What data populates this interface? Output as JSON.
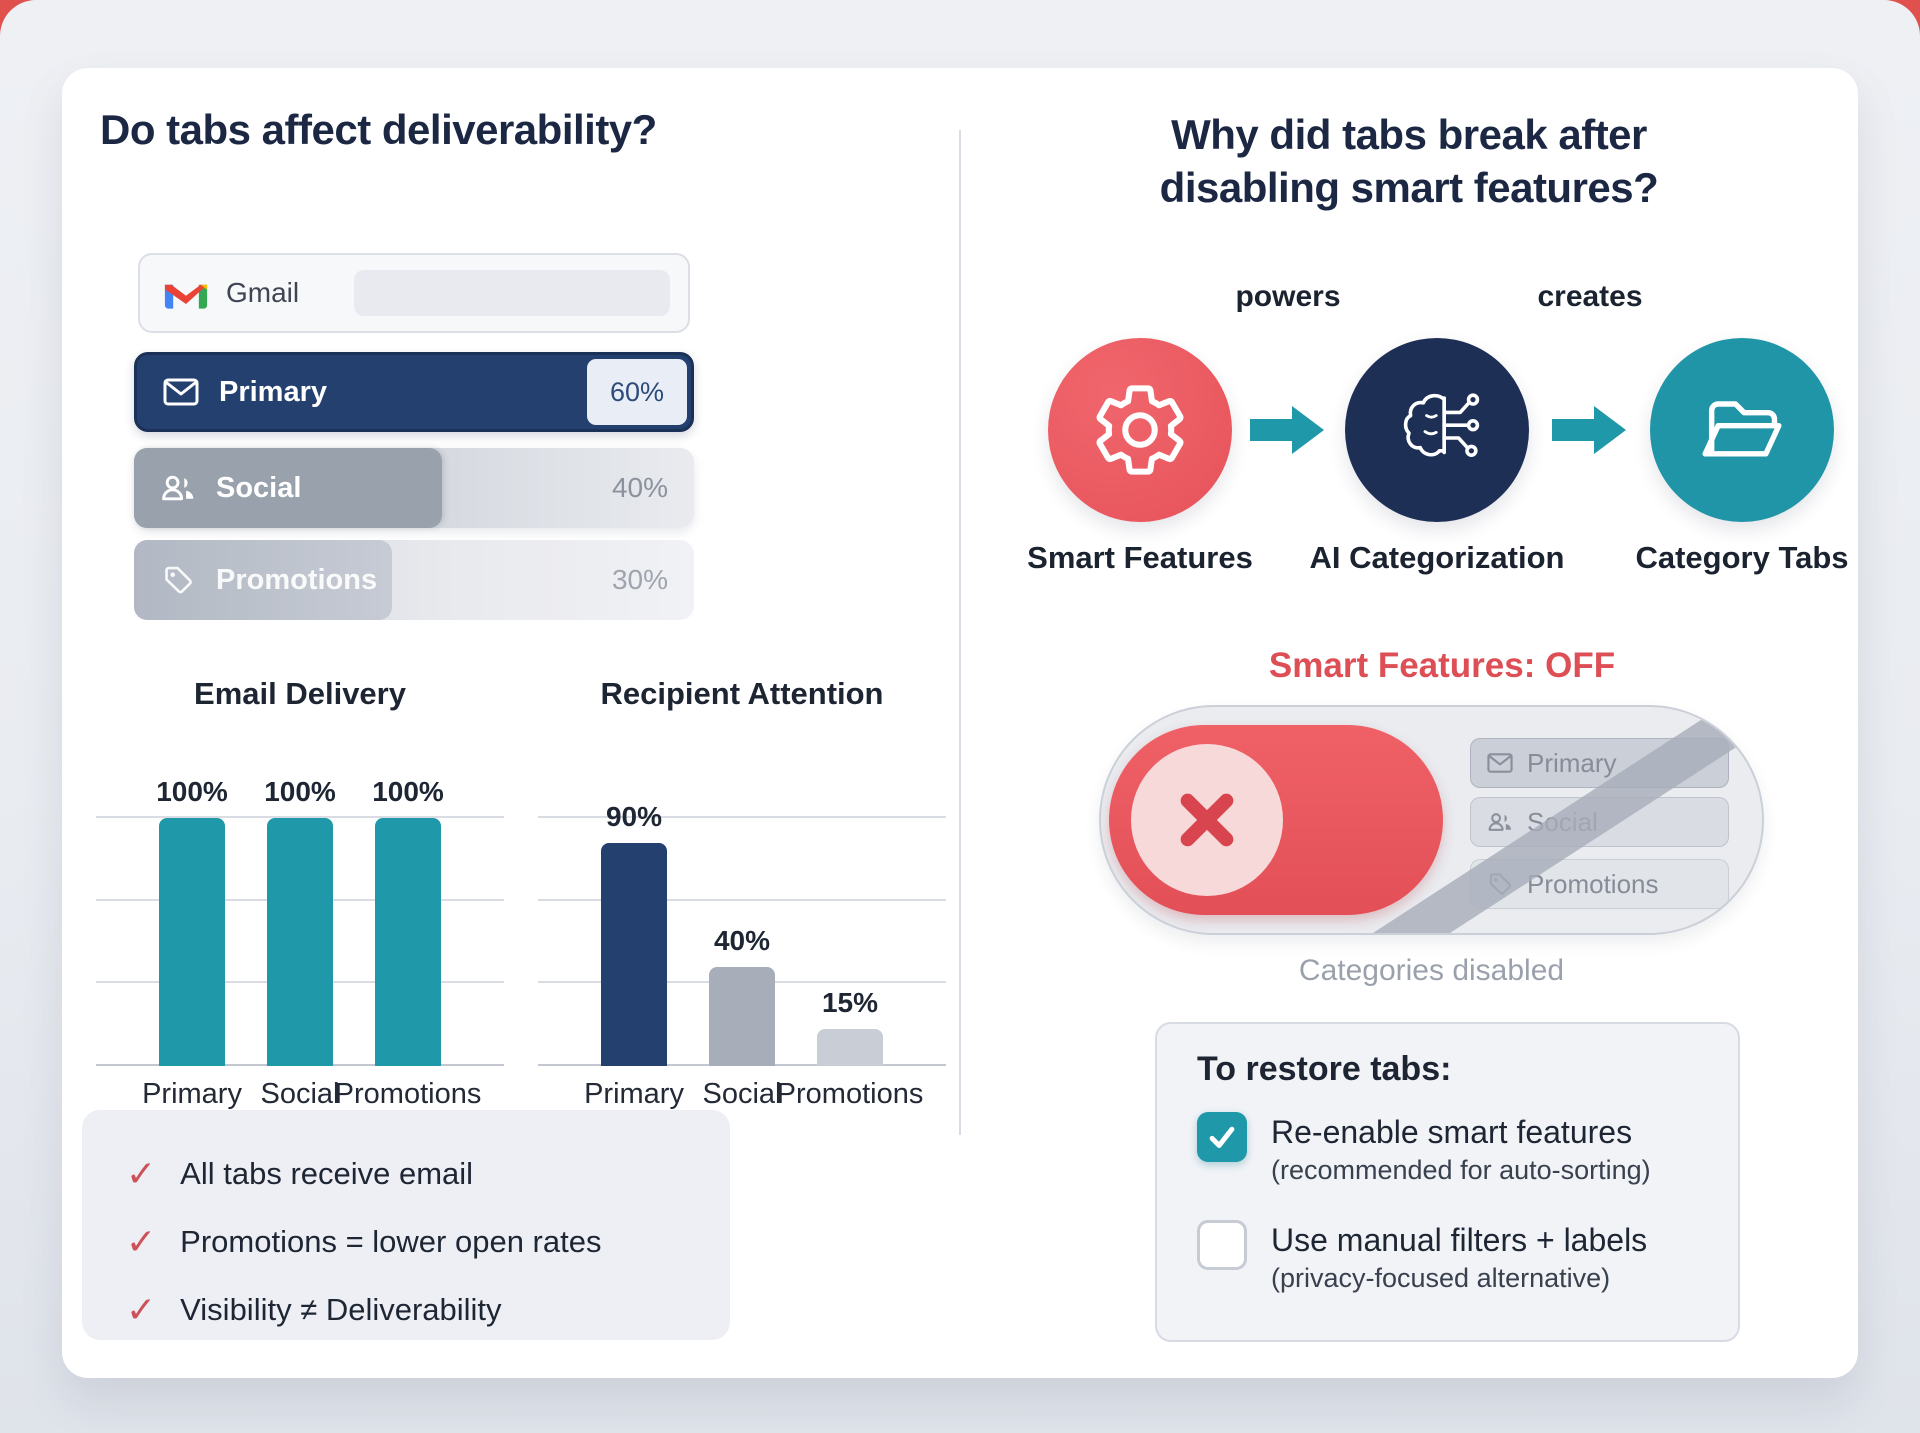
{
  "left": {
    "title": "Do tabs affect deliverability?",
    "gmail": {
      "label": "Gmail"
    },
    "tabs": [
      {
        "label": "Primary",
        "value": "60%"
      },
      {
        "label": "Social",
        "value": "40%"
      },
      {
        "label": "Promotions",
        "value": "30%"
      }
    ],
    "checklist": [
      "All tabs receive email",
      "Promotions = lower open rates",
      "Visibility ≠ Deliverability"
    ]
  },
  "chart_data": [
    {
      "type": "bar",
      "title": "Email Delivery",
      "categories": [
        "Primary",
        "Social",
        "Promotions"
      ],
      "values": [
        100,
        100,
        100
      ],
      "value_labels": [
        "100%",
        "100%",
        "100%"
      ],
      "xlabel": "",
      "ylabel": "",
      "ylim": [
        0,
        100
      ],
      "grid": true,
      "legend": false,
      "bar_colors": [
        "#1f98aa",
        "#1f98aa",
        "#1f98aa"
      ]
    },
    {
      "type": "bar",
      "title": "Recipient Attention",
      "categories": [
        "Primary",
        "Social",
        "Promotions"
      ],
      "values": [
        90,
        40,
        15
      ],
      "value_labels": [
        "90%",
        "40%",
        "15%"
      ],
      "xlabel": "",
      "ylabel": "",
      "ylim": [
        0,
        100
      ],
      "grid": true,
      "legend": false,
      "bar_colors": [
        "#24406e",
        "#a7aeb9",
        "#c9cdd5"
      ]
    }
  ],
  "right": {
    "title_line1": "Why did tabs break after",
    "title_line2": "disabling smart features?",
    "flow": {
      "nodes": [
        {
          "label": "Smart Features",
          "color": "#e7525a"
        },
        {
          "label": "AI Categorization",
          "color": "#1e2f55"
        },
        {
          "label": "Category Tabs",
          "color": "#2095a8"
        }
      ],
      "connectors": [
        "powers",
        "creates"
      ]
    },
    "toggle": {
      "heading": "Smart Features: OFF",
      "tabs": [
        "Primary",
        "Social",
        "Promotions"
      ],
      "caption": "Categories disabled"
    },
    "restore": {
      "title": "To restore tabs:",
      "options": [
        {
          "label": "Re-enable smart features",
          "note": "(recommended for auto-sorting)",
          "checked": true
        },
        {
          "label": "Use manual filters + labels",
          "note": "(privacy-focused alternative)",
          "checked": false
        }
      ]
    }
  },
  "colors": {
    "teal": "#1f98aa",
    "navy": "#24406e",
    "coral": "#e7525a",
    "off_red": "#dd4f55",
    "check_red": "#cf5158"
  }
}
